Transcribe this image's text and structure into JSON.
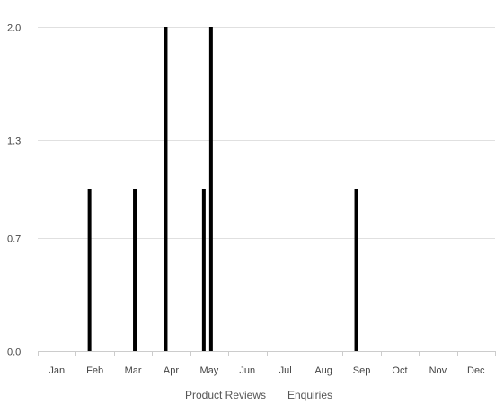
{
  "chart_data": {
    "type": "bar",
    "categories": [
      "Jan",
      "Feb",
      "Mar",
      "Apr",
      "May",
      "Jun",
      "Jul",
      "Aug",
      "Sep",
      "Oct",
      "Nov",
      "Dec"
    ],
    "series": [
      {
        "name": "Product Reviews",
        "values": [
          0,
          1,
          0,
          2,
          1,
          0,
          0,
          0,
          1,
          0,
          0,
          0
        ]
      },
      {
        "name": "Enquiries",
        "values": [
          0,
          0,
          1,
          0,
          2,
          0,
          0,
          0,
          0,
          0,
          0,
          0
        ]
      }
    ],
    "y_ticks": [
      "0.0",
      "0.7",
      "1.3",
      "2.0"
    ],
    "ylim": [
      0,
      2
    ],
    "grid": true,
    "legend_position": "bottom",
    "colors": {
      "bars": "#000000",
      "grid": "#e0e0e0",
      "axis": "#cccccc"
    }
  }
}
